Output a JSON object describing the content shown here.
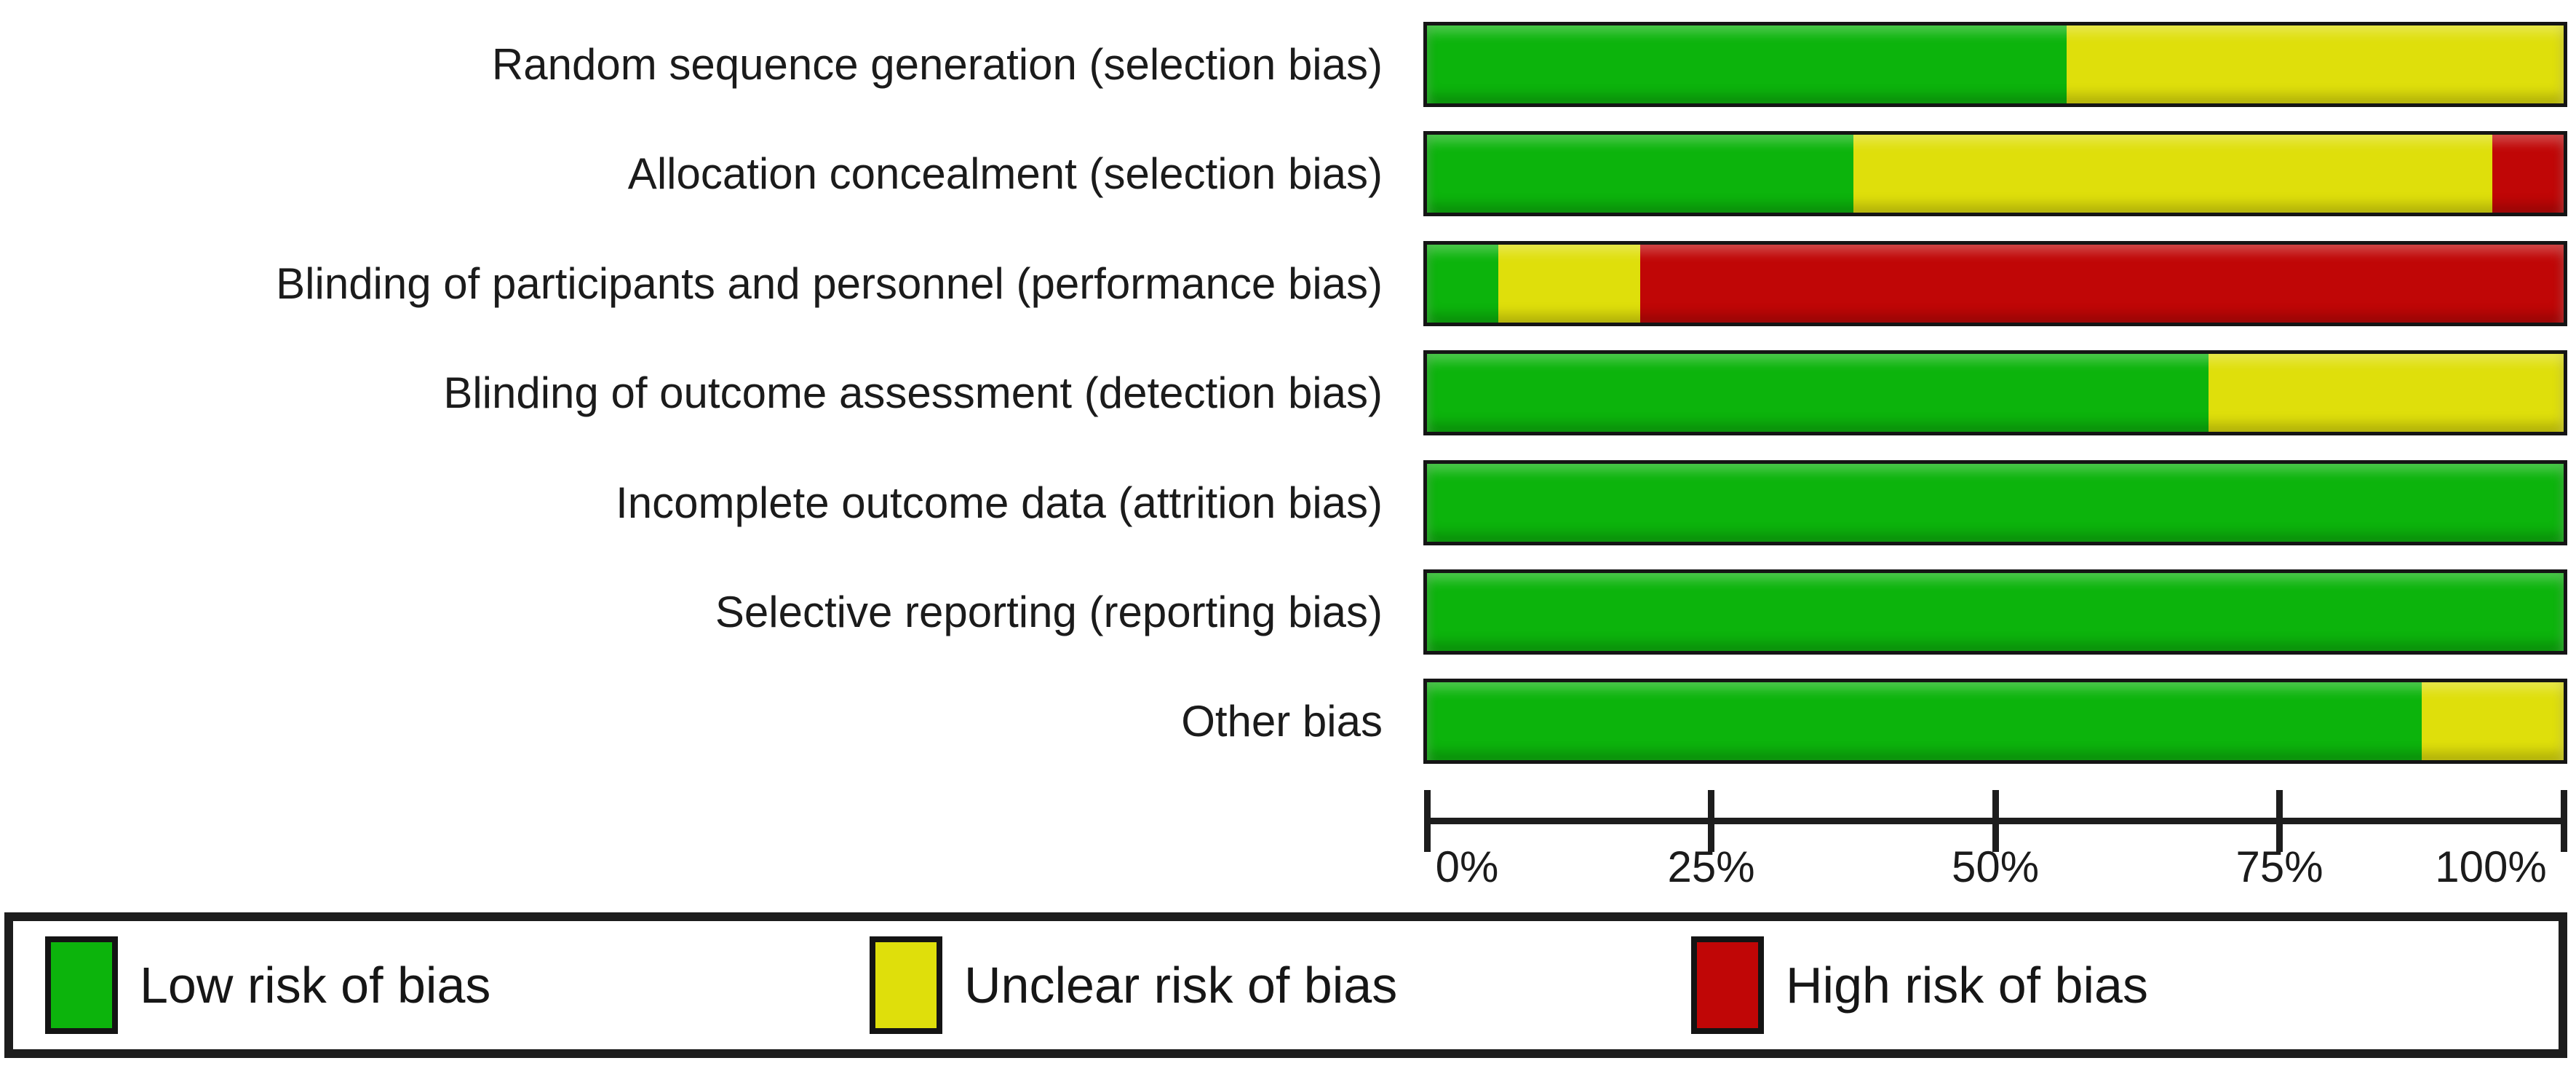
{
  "chart_data": {
    "type": "bar",
    "orientation": "horizontal",
    "stacked": true,
    "unit": "percent",
    "title": "",
    "categories": [
      "Random sequence generation (selection bias)",
      "Allocation concealment (selection bias)",
      "Blinding of participants and personnel (performance bias)",
      "Blinding of outcome assessment (detection bias)",
      "Incomplete outcome data (attrition bias)",
      "Selective reporting (reporting bias)",
      "Other bias"
    ],
    "series": [
      {
        "key": "low",
        "name": "Low risk of bias",
        "color": "#0cb40c",
        "values": [
          56.25,
          37.5,
          6.25,
          68.75,
          100,
          100,
          87.5
        ]
      },
      {
        "key": "unclear",
        "name": "Unclear risk of bias",
        "color": "#dfdf0b",
        "values": [
          43.75,
          56.25,
          12.5,
          31.25,
          0,
          0,
          12.5
        ]
      },
      {
        "key": "high",
        "name": "High risk of bias",
        "color": "#c00606",
        "values": [
          0,
          6.25,
          81.25,
          0,
          0,
          0,
          0
        ]
      }
    ],
    "x_axis": {
      "range": [
        0,
        100
      ],
      "tick_labels": [
        "0%",
        "25%",
        "50%",
        "75%",
        "100%"
      ],
      "grid": false
    },
    "legend": {
      "position": "bottom",
      "items": [
        {
          "key": "low",
          "label": "Low risk of bias",
          "color": "#0cb40c"
        },
        {
          "key": "unclear",
          "label": "Unclear risk of bias",
          "color": "#dfdf0b"
        },
        {
          "key": "high",
          "label": "High risk of bias",
          "color": "#c00606"
        }
      ]
    }
  },
  "colors": {
    "background": "#ffffff",
    "bar_border": "#151515",
    "axis": "#1d1d1d",
    "text": "#1b1b1b",
    "legend_border": "#1d1d1d"
  }
}
